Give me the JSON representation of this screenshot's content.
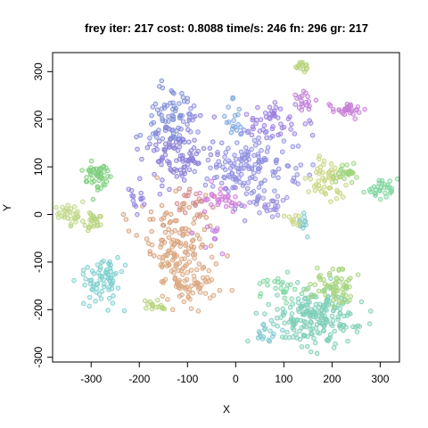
{
  "chart_data": {
    "type": "scatter",
    "title": "frey iter: 217 cost: 0.8088 time/s: 246 fn: 296 gr: 217",
    "xlabel": "X",
    "ylabel": "Y",
    "xlim": [
      -380,
      340
    ],
    "ylim": [
      -310,
      340
    ],
    "xticks": [
      -300,
      -200,
      -100,
      0,
      100,
      200,
      300
    ],
    "yticks": [
      -300,
      -200,
      -100,
      0,
      100,
      200,
      300
    ],
    "grid": false,
    "legend": "none",
    "clusters": [
      {
        "cx": -138,
        "cy": 200,
        "sx": 20,
        "sy": 40,
        "n": 70,
        "color": "#7f8fd6"
      },
      {
        "cx": -95,
        "cy": 195,
        "sx": 10,
        "sy": 20,
        "n": 14,
        "color": "#8f8fe0"
      },
      {
        "cx": -125,
        "cy": 120,
        "sx": 38,
        "sy": 30,
        "n": 95,
        "color": "#8a7fd8"
      },
      {
        "cx": -85,
        "cy": 30,
        "sx": 18,
        "sy": 18,
        "n": 22,
        "color": "#d08a8a"
      },
      {
        "cx": -125,
        "cy": -45,
        "sx": 38,
        "sy": 35,
        "n": 95,
        "color": "#d6a07a"
      },
      {
        "cx": -105,
        "cy": -125,
        "sx": 32,
        "sy": 38,
        "n": 105,
        "color": "#dca882"
      },
      {
        "cx": -30,
        "cy": 40,
        "sx": 22,
        "sy": 14,
        "n": 35,
        "color": "#d07fd8"
      },
      {
        "cx": -40,
        "cy": -45,
        "sx": 12,
        "sy": 12,
        "n": 10,
        "color": "#c07fe0"
      },
      {
        "cx": -210,
        "cy": 30,
        "sx": 15,
        "sy": 12,
        "n": 14,
        "color": "#8f7fe0"
      },
      {
        "cx": -285,
        "cy": 80,
        "sx": 16,
        "sy": 18,
        "n": 48,
        "color": "#7fcf7f"
      },
      {
        "cx": -340,
        "cy": 0,
        "sx": 14,
        "sy": 12,
        "n": 30,
        "color": "#c0d88a"
      },
      {
        "cx": -295,
        "cy": -10,
        "sx": 12,
        "sy": 14,
        "n": 26,
        "color": "#b8d47f"
      },
      {
        "cx": -275,
        "cy": -135,
        "sx": 22,
        "sy": 26,
        "n": 75,
        "color": "#7fcfcf"
      },
      {
        "cx": -170,
        "cy": -193,
        "sx": 14,
        "sy": 6,
        "n": 16,
        "color": "#b8d47f"
      },
      {
        "cx": 0,
        "cy": 200,
        "sx": 10,
        "sy": 18,
        "n": 18,
        "color": "#7fa8e0"
      },
      {
        "cx": 80,
        "cy": 200,
        "sx": 30,
        "sy": 22,
        "n": 50,
        "color": "#9a7fe0"
      },
      {
        "cx": 140,
        "cy": 230,
        "sx": 10,
        "sy": 14,
        "n": 18,
        "color": "#c07fd8"
      },
      {
        "cx": 220,
        "cy": 220,
        "sx": 16,
        "sy": 8,
        "n": 32,
        "color": "#c87fd8"
      },
      {
        "cx": 30,
        "cy": 100,
        "sx": 48,
        "sy": 40,
        "n": 150,
        "color": "#8f8fe0"
      },
      {
        "cx": 75,
        "cy": 20,
        "sx": 20,
        "sy": 15,
        "n": 25,
        "color": "#9f8fe0"
      },
      {
        "cx": 140,
        "cy": 310,
        "sx": 8,
        "sy": 6,
        "n": 16,
        "color": "#b8d47f"
      },
      {
        "cx": 185,
        "cy": 75,
        "sx": 22,
        "sy": 22,
        "n": 50,
        "color": "#c8d47f"
      },
      {
        "cx": 230,
        "cy": 90,
        "sx": 14,
        "sy": 10,
        "n": 26,
        "color": "#9fd47f"
      },
      {
        "cx": 300,
        "cy": 55,
        "sx": 15,
        "sy": 10,
        "n": 32,
        "color": "#7fd8a0"
      },
      {
        "cx": 140,
        "cy": -20,
        "sx": 8,
        "sy": 10,
        "n": 12,
        "color": "#7fc8cf"
      },
      {
        "cx": 120,
        "cy": -10,
        "sx": 8,
        "sy": 10,
        "n": 10,
        "color": "#c8d47f"
      },
      {
        "cx": 165,
        "cy": -215,
        "sx": 45,
        "sy": 32,
        "n": 210,
        "color": "#7fcfb8"
      },
      {
        "cx": 205,
        "cy": -150,
        "sx": 25,
        "sy": 22,
        "n": 65,
        "color": "#a8d47f"
      },
      {
        "cx": 90,
        "cy": -155,
        "sx": 20,
        "sy": 15,
        "n": 24,
        "color": "#7fd8a0"
      },
      {
        "cx": 60,
        "cy": -250,
        "sx": 15,
        "sy": 12,
        "n": 16,
        "color": "#7fc8cf"
      }
    ]
  }
}
